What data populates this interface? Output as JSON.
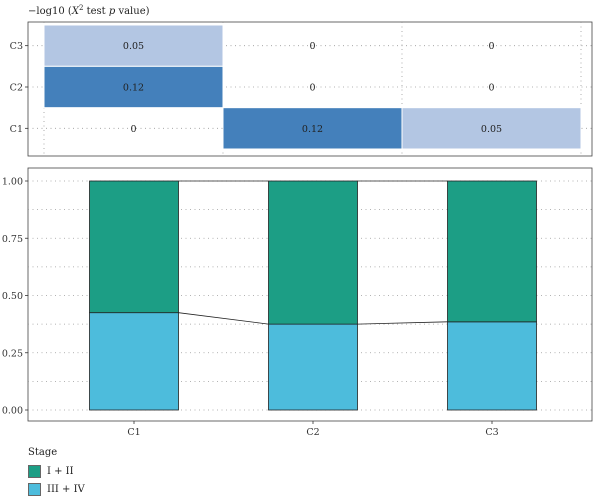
{
  "chart_data": [
    {
      "type": "heatmap",
      "title": "−log10 (X² test p value)",
      "title_parts": {
        "prefix": "−log10 (",
        "variable": "X",
        "superscript": "2",
        "middle": " test ",
        "italic": "p",
        "suffix": " value)"
      },
      "rows": [
        "C3",
        "C2",
        "C1"
      ],
      "columns": [
        "C1",
        "C2",
        "C3"
      ],
      "values": [
        [
          0.05,
          0,
          0
        ],
        [
          0.12,
          0,
          0
        ],
        [
          0,
          0.12,
          0.05
        ]
      ],
      "cell_labels": [
        [
          "0.05",
          "0",
          "0"
        ],
        [
          "0.12",
          "0",
          "0"
        ],
        [
          "0",
          "0.12",
          "0.05"
        ]
      ],
      "color_scale": {
        "low": "#ffffff",
        "mid": "#b3c6e3",
        "high": "#4480bb"
      },
      "grid": true
    },
    {
      "type": "bar",
      "stacked": true,
      "categories": [
        "C1",
        "C2",
        "C3"
      ],
      "series": [
        {
          "name": "III + IV",
          "values": [
            0.425,
            0.375,
            0.385
          ],
          "color": "#4dbcdc"
        },
        {
          "name": "I + II",
          "values": [
            0.575,
            0.625,
            0.615
          ],
          "color": "#1c9e85"
        }
      ],
      "ylim": [
        0,
        1
      ],
      "yticks": [
        "0.00",
        "0.25",
        "0.50",
        "0.75",
        "1.00"
      ],
      "xlabel": "",
      "ylabel": "",
      "grid": true,
      "connecting_lines": true,
      "legend": {
        "title": "Stage",
        "placement": "bottom-left",
        "items": [
          {
            "label": "I + II",
            "color": "#1c9e85"
          },
          {
            "label": "III + IV",
            "color": "#4dbcdc"
          }
        ]
      }
    }
  ]
}
